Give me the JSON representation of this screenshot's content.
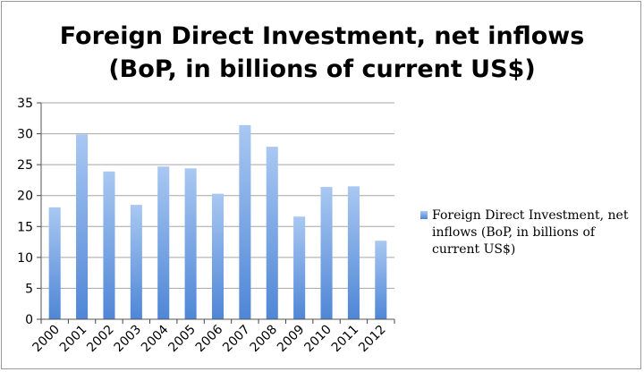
{
  "chart_data": {
    "type": "bar",
    "title_lines": [
      "Foreign Direct Investment, net inflows",
      "(BoP, in billions of current US$)"
    ],
    "categories": [
      "2000",
      "2001",
      "2002",
      "2003",
      "2004",
      "2005",
      "2006",
      "2007",
      "2008",
      "2009",
      "2010",
      "2011",
      "2012"
    ],
    "series": [
      {
        "name": "Foreign Direct Investment, net inflows (BoP, in billions of current US$)",
        "values": [
          18.1,
          29.9,
          23.9,
          18.5,
          24.7,
          24.4,
          20.3,
          31.4,
          27.9,
          16.6,
          21.4,
          21.5,
          12.7
        ]
      }
    ],
    "ylim": [
      0,
      35
    ],
    "yticks": [
      "0",
      "5",
      "10",
      "15",
      "20",
      "25",
      "30",
      "35"
    ],
    "grid": true,
    "legend_position": "right",
    "colors": {
      "bar_top": "#a9c8f2",
      "bar_bottom": "#4f86d6",
      "grid": "#a6a6a6"
    }
  }
}
